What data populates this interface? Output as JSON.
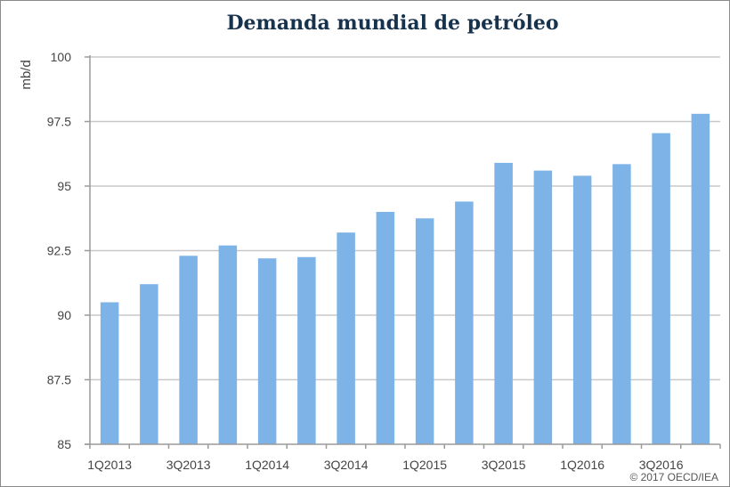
{
  "chart_data": {
    "type": "bar",
    "title": "Demanda mundial de petróleo",
    "ylabel": "mb/d",
    "xlabel": "",
    "ylim": [
      85,
      100
    ],
    "yticks": [
      85,
      87.5,
      90,
      92.5,
      95,
      97.5,
      100
    ],
    "ytick_labels": [
      "85",
      "87.5",
      "90",
      "92.5",
      "95",
      "97.5",
      "100"
    ],
    "grid": true,
    "categories": [
      "1Q2013",
      "2Q2013",
      "3Q2013",
      "4Q2013",
      "1Q2014",
      "2Q2014",
      "3Q2014",
      "4Q2014",
      "1Q2015",
      "2Q2015",
      "3Q2015",
      "4Q2015",
      "1Q2016",
      "2Q2016",
      "3Q2016",
      "4Q2016"
    ],
    "xtick_labels": [
      "1Q2013",
      "3Q2013",
      "1Q2014",
      "3Q2014",
      "1Q2015",
      "3Q2015",
      "1Q2016",
      "3Q2016"
    ],
    "values": [
      90.5,
      91.2,
      92.3,
      92.7,
      92.2,
      92.25,
      93.2,
      94.0,
      93.75,
      94.4,
      95.9,
      95.6,
      95.4,
      95.85,
      97.05,
      97.8
    ],
    "bar_color": "#7eb3e8",
    "grid_color": "#c8c8c8",
    "copyright": "© 2017 OECD/IEA"
  }
}
